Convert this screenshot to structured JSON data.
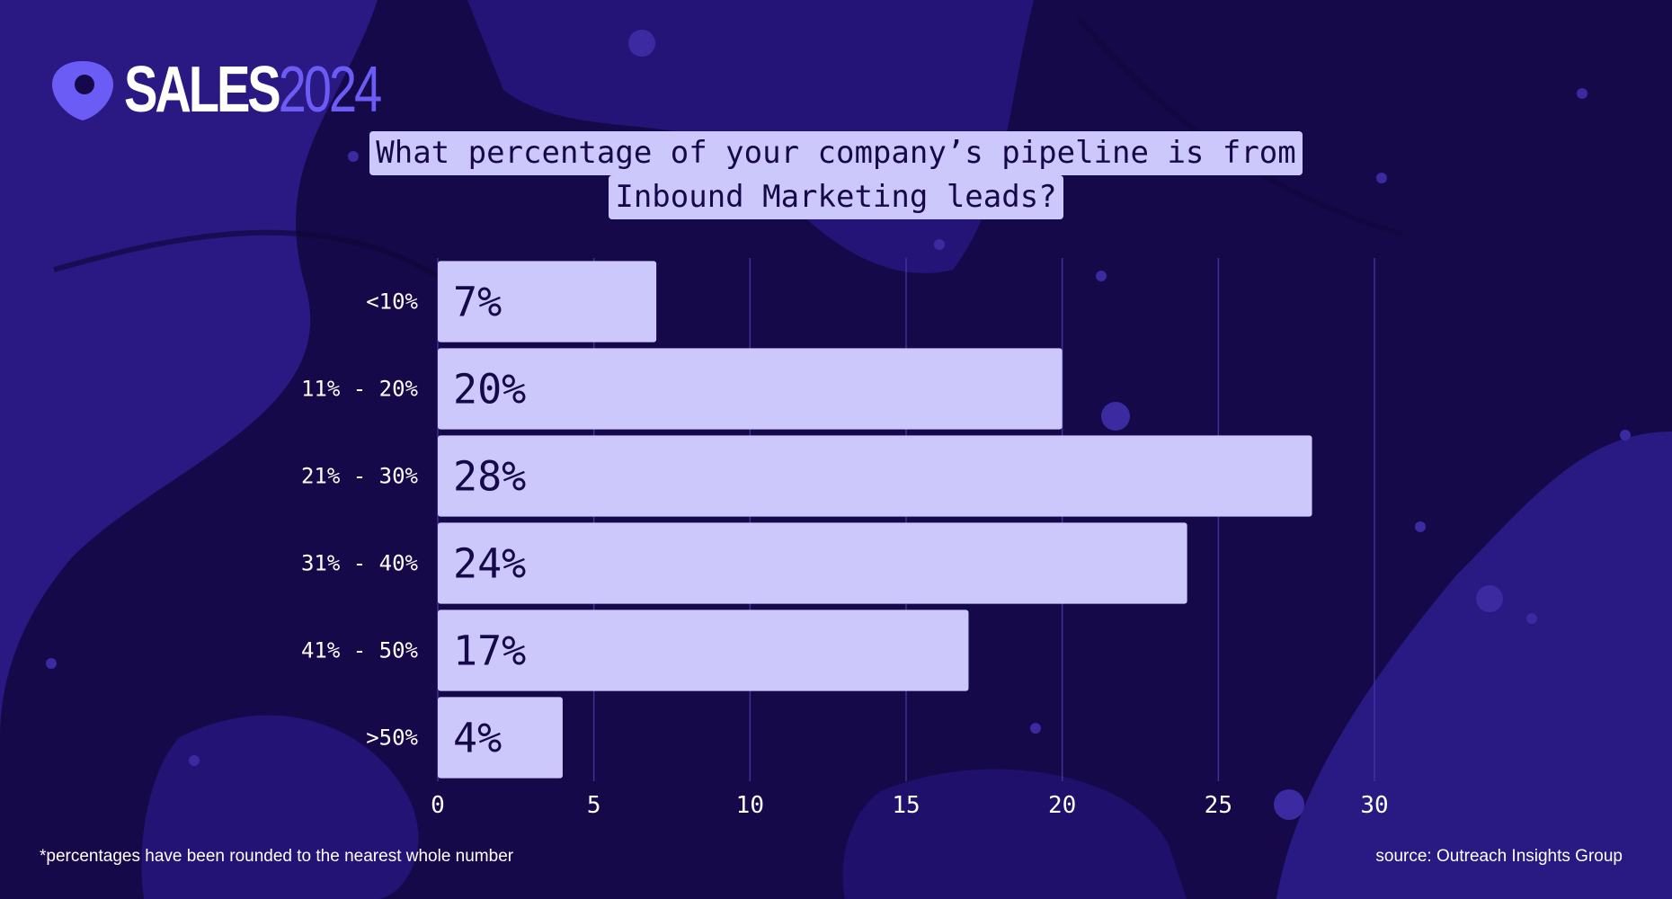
{
  "brand": {
    "logo_word_a": "SALES",
    "logo_word_b": "2024",
    "accent_color": "#6c5cf6",
    "background_color": "#16094a",
    "bar_color": "#cdc8fb"
  },
  "title_lines": [
    "What percentage of your company’s pipeline is from",
    "Inbound Marketing leads?"
  ],
  "footnote": "*percentages have been rounded to the nearest whole number",
  "source": "source: Outreach Insights Group",
  "chart_data": {
    "type": "bar",
    "orientation": "horizontal",
    "title": "What percentage of your company’s pipeline is from Inbound Marketing leads?",
    "categories": [
      "<10%",
      "11% - 20%",
      "21% - 30%",
      "31% - 40%",
      "41% - 50%",
      ">50%"
    ],
    "values": [
      7,
      20,
      28,
      24,
      17,
      4
    ],
    "data_labels": [
      "7%",
      "20%",
      "28%",
      "24%",
      "17%",
      "4%"
    ],
    "xlim": [
      0,
      30
    ],
    "xticks": [
      0,
      5,
      10,
      15,
      20,
      25,
      30
    ],
    "xlabel": "",
    "ylabel": "",
    "grid": "vertical"
  }
}
